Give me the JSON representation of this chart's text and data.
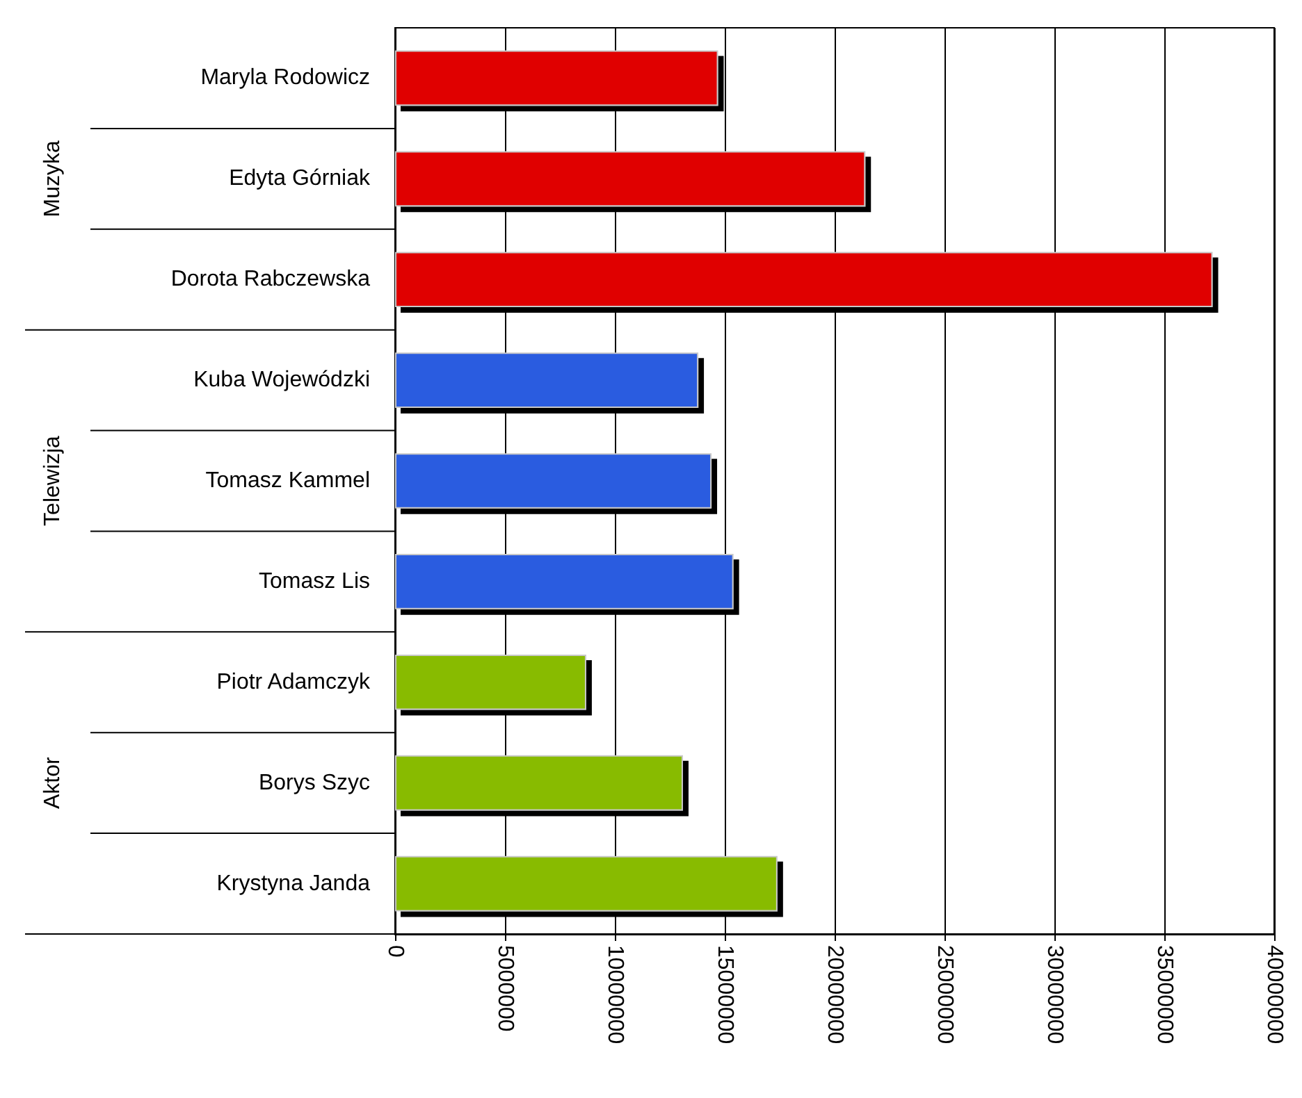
{
  "chart_data": {
    "type": "bar",
    "orientation": "horizontal",
    "categories": [
      "Maryla Rodowicz",
      "Edyta Górniak",
      "Dorota Rabczewska",
      "Kuba Wojewódzki",
      "Tomasz Kammel",
      "Tomasz Lis",
      "Piotr Adamczyk",
      "Borys Szyc",
      "Krystyna Janda"
    ],
    "values": [
      14700000,
      21400000,
      37200000,
      13800000,
      14400000,
      15400000,
      8700000,
      13100000,
      17400000
    ],
    "colors": [
      "#e00000",
      "#e00000",
      "#e00000",
      "#2a5be0",
      "#2a5be0",
      "#2a5be0",
      "#88bb00",
      "#88bb00",
      "#88bb00"
    ],
    "annotations": [
      "Muzyka",
      "Telewizja",
      "Aktor"
    ],
    "xlim": [
      0,
      40000000
    ],
    "xticks": [
      0,
      5000000,
      10000000,
      15000000,
      20000000,
      25000000,
      30000000,
      35000000,
      40000000
    ],
    "grid": "x"
  }
}
